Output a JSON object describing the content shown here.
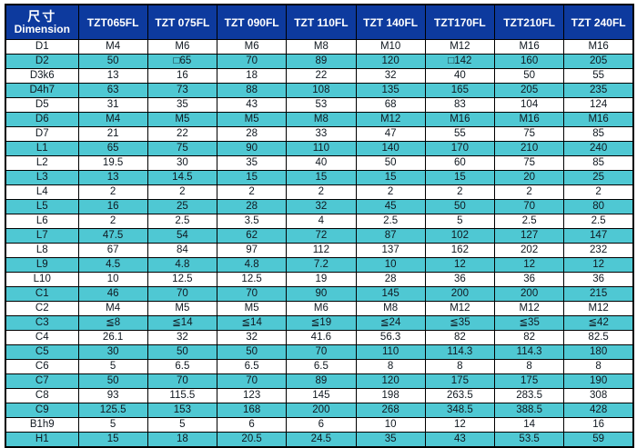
{
  "colors": {
    "header_bg": "#0d3a9e",
    "header_text": "#ffffff",
    "row_alt": "#4fc8d3",
    "row_base": "#ffffff",
    "border": "#000000",
    "text": "#101820"
  },
  "table": {
    "corner": {
      "zh": "尺寸",
      "en": "Dimension"
    },
    "columns": [
      "TZT065FL",
      "TZT 075FL",
      "TZT 090FL",
      "TZT 110FL",
      "TZT 140FL",
      "TZT170FL",
      "TZT210FL",
      "TZT 240FL"
    ],
    "rows": [
      {
        "label": "D1",
        "values": [
          "M4",
          "M6",
          "M6",
          "M8",
          "M10",
          "M12",
          "M16",
          "M16"
        ]
      },
      {
        "label": "D2",
        "values": [
          "50",
          "□65",
          "70",
          "89",
          "120",
          "□142",
          "160",
          "205"
        ]
      },
      {
        "label": "D3k6",
        "values": [
          "13",
          "16",
          "18",
          "22",
          "32",
          "40",
          "50",
          "55"
        ]
      },
      {
        "label": "D4h7",
        "values": [
          "63",
          "73",
          "88",
          "108",
          "135",
          "165",
          "205",
          "235"
        ]
      },
      {
        "label": "D5",
        "values": [
          "31",
          "35",
          "43",
          "53",
          "68",
          "83",
          "104",
          "124"
        ]
      },
      {
        "label": "D6",
        "values": [
          "M4",
          "M5",
          "M5",
          "M8",
          "M12",
          "M16",
          "M16",
          "M16"
        ]
      },
      {
        "label": "D7",
        "values": [
          "21",
          "22",
          "28",
          "33",
          "47",
          "55",
          "75",
          "85"
        ]
      },
      {
        "label": "L1",
        "values": [
          "65",
          "75",
          "90",
          "110",
          "140",
          "170",
          "210",
          "240"
        ]
      },
      {
        "label": "L2",
        "values": [
          "19.5",
          "30",
          "35",
          "40",
          "50",
          "60",
          "75",
          "85"
        ]
      },
      {
        "label": "L3",
        "values": [
          "13",
          "14.5",
          "15",
          "15",
          "15",
          "15",
          "20",
          "25"
        ]
      },
      {
        "label": "L4",
        "values": [
          "2",
          "2",
          "2",
          "2",
          "2",
          "2",
          "2",
          "2"
        ]
      },
      {
        "label": "L5",
        "values": [
          "16",
          "25",
          "28",
          "32",
          "45",
          "50",
          "70",
          "80"
        ]
      },
      {
        "label": "L6",
        "values": [
          "2",
          "2.5",
          "3.5",
          "4",
          "2.5",
          "5",
          "2.5",
          "2.5"
        ]
      },
      {
        "label": "L7",
        "values": [
          "47.5",
          "54",
          "62",
          "72",
          "87",
          "102",
          "127",
          "147"
        ]
      },
      {
        "label": "L8",
        "values": [
          "67",
          "84",
          "97",
          "112",
          "137",
          "162",
          "202",
          "232"
        ]
      },
      {
        "label": "L9",
        "values": [
          "4.5",
          "4.8",
          "4.8",
          "7.2",
          "10",
          "12",
          "12",
          "12"
        ]
      },
      {
        "label": "L10",
        "values": [
          "10",
          "12.5",
          "12.5",
          "19",
          "28",
          "36",
          "36",
          "36"
        ]
      },
      {
        "label": "C1",
        "values": [
          "46",
          "70",
          "70",
          "90",
          "145",
          "200",
          "200",
          "215"
        ]
      },
      {
        "label": "C2",
        "values": [
          "M4",
          "M5",
          "M5",
          "M6",
          "M8",
          "M12",
          "M12",
          "M12"
        ]
      },
      {
        "label": "C3",
        "values": [
          "≦8",
          "≦14",
          "≦14",
          "≦19",
          "≦24",
          "≦35",
          "≦35",
          "≦42"
        ]
      },
      {
        "label": "C4",
        "values": [
          "26.1",
          "32",
          "32",
          "41.6",
          "56.3",
          "82",
          "82",
          "82.5"
        ]
      },
      {
        "label": "C5",
        "values": [
          "30",
          "50",
          "50",
          "70",
          "110",
          "114.3",
          "114.3",
          "180"
        ]
      },
      {
        "label": "C6",
        "values": [
          "5",
          "6.5",
          "6.5",
          "6.5",
          "8",
          "8",
          "8",
          "8"
        ]
      },
      {
        "label": "C7",
        "values": [
          "50",
          "70",
          "70",
          "89",
          "120",
          "175",
          "175",
          "190"
        ]
      },
      {
        "label": "C8",
        "values": [
          "93",
          "115.5",
          "123",
          "145",
          "198",
          "263.5",
          "283.5",
          "308"
        ]
      },
      {
        "label": "C9",
        "values": [
          "125.5",
          "153",
          "168",
          "200",
          "268",
          "348.5",
          "388.5",
          "428"
        ]
      },
      {
        "label": "B1h9",
        "values": [
          "5",
          "5",
          "6",
          "6",
          "10",
          "12",
          "14",
          "16"
        ]
      },
      {
        "label": "H1",
        "values": [
          "15",
          "18",
          "20.5",
          "24.5",
          "35",
          "43",
          "53.5",
          "59"
        ]
      }
    ]
  }
}
